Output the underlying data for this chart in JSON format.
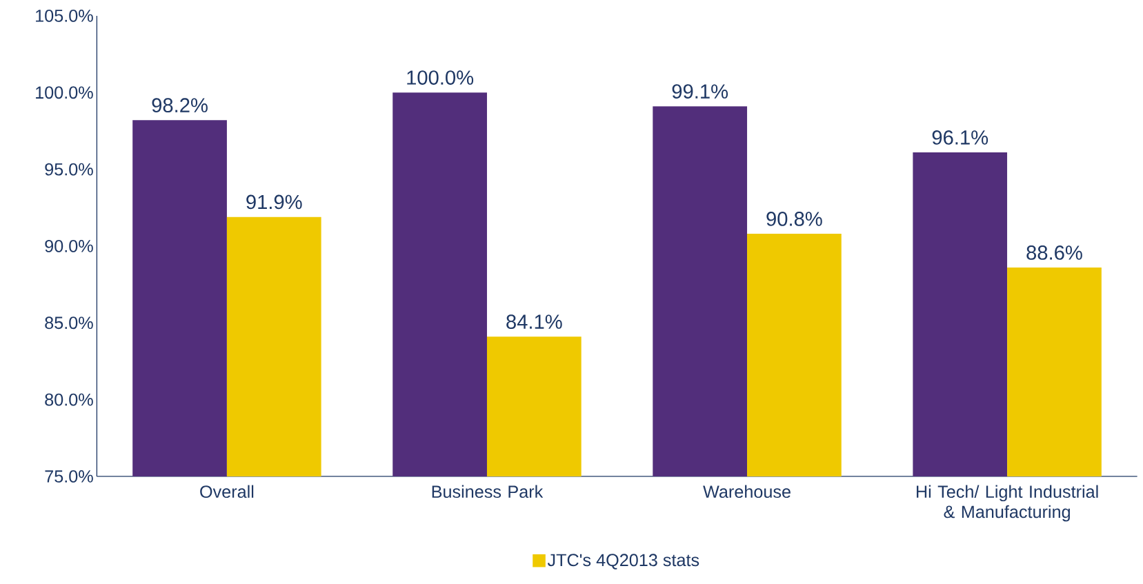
{
  "chart_data": {
    "type": "bar",
    "categories": [
      "Overall",
      "Business Park",
      "Warehouse",
      "Hi Tech/ Light Industrial & Manufacturing"
    ],
    "series": [
      {
        "color": "#522e7b",
        "values": [
          98.2,
          100.0,
          99.1,
          96.1
        ],
        "value_labels": [
          "98.2%",
          "100.0%",
          "99.1%",
          "96.1%"
        ]
      },
      {
        "name": "JTC's 4Q2013 stats",
        "color": "#efc900",
        "values": [
          91.9,
          84.1,
          90.8,
          88.6
        ],
        "value_labels": [
          "91.9%",
          "84.1%",
          "90.8%",
          "88.6%"
        ]
      }
    ],
    "ylim": [
      75,
      105
    ],
    "yticks": [
      {
        "value": 75,
        "label": "75.0%"
      },
      {
        "value": 80,
        "label": "80.0%"
      },
      {
        "value": 85,
        "label": "85.0%"
      },
      {
        "value": 90,
        "label": "90.0%"
      },
      {
        "value": 95,
        "label": "95.0%"
      },
      {
        "value": 100,
        "label": "100.0%"
      },
      {
        "value": 105,
        "label": "105.0%"
      }
    ],
    "grid": false,
    "legend": "bottom"
  }
}
